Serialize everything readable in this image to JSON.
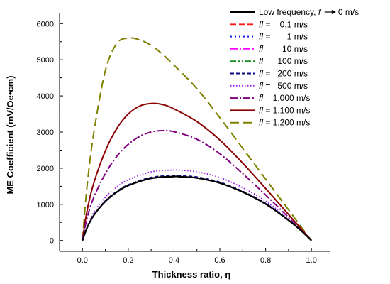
{
  "chart_data": {
    "type": "line",
    "title": "",
    "xlabel": "Thickness ratio, η",
    "ylabel": "ME Coefficient (mV/Oe•cm)",
    "xlim": [
      -0.1,
      1.08
    ],
    "ylim": [
      -300,
      6300
    ],
    "xticks": [
      0.0,
      0.2,
      0.4,
      0.6,
      0.8,
      1.0
    ],
    "xtick_labels": [
      "0.0",
      "0.2",
      "0.4",
      "0.6",
      "0.8",
      "1.0"
    ],
    "yticks": [
      0,
      1000,
      2000,
      3000,
      4000,
      5000,
      6000
    ],
    "ytick_labels": [
      "0",
      "1000",
      "2000",
      "3000",
      "4000",
      "5000",
      "6000"
    ],
    "grid": false,
    "legend_position": "top-right",
    "series": [
      {
        "name": "Low frequency, f → 0 m/s",
        "legend": {
          "main": "Low frequency, ",
          "italic": "f",
          "rest": "0 m/s",
          "arrow": true
        },
        "color": "#000000",
        "dash": "",
        "width": 2.2,
        "x": [
          0,
          0.02,
          0.05,
          0.1,
          0.15,
          0.2,
          0.3,
          0.4,
          0.42,
          0.5,
          0.6,
          0.7,
          0.8,
          0.9,
          0.95,
          1.0
        ],
        "y": [
          0,
          350,
          700,
          1080,
          1340,
          1520,
          1720,
          1770,
          1768,
          1730,
          1590,
          1340,
          1010,
          560,
          300,
          0
        ]
      },
      {
        "name": "fl = 0.1 m/s",
        "legend": {
          "italic": "fl",
          "rest": " =    0.1 m/s"
        },
        "color": "#ff1a1a",
        "dash": "8,4",
        "width": 1.8,
        "x": [
          0,
          0.02,
          0.05,
          0.1,
          0.15,
          0.2,
          0.3,
          0.4,
          0.42,
          0.5,
          0.6,
          0.7,
          0.8,
          0.9,
          0.95,
          1.0
        ],
        "y": [
          0,
          350,
          700,
          1080,
          1340,
          1520,
          1720,
          1770,
          1768,
          1730,
          1590,
          1340,
          1010,
          560,
          300,
          0
        ]
      },
      {
        "name": "fl = 1 m/s",
        "legend": {
          "italic": "fl",
          "rest": " =       1 m/s"
        },
        "color": "#1a1aff",
        "dash": "2,4",
        "width": 2,
        "x": [
          0,
          0.02,
          0.05,
          0.1,
          0.15,
          0.2,
          0.3,
          0.4,
          0.42,
          0.5,
          0.6,
          0.7,
          0.8,
          0.9,
          0.95,
          1.0
        ],
        "y": [
          0,
          350,
          700,
          1080,
          1340,
          1520,
          1720,
          1770,
          1768,
          1730,
          1590,
          1340,
          1010,
          560,
          300,
          0
        ]
      },
      {
        "name": "fl = 10 m/s",
        "legend": {
          "italic": "fl",
          "rest": " =     10 m/s"
        },
        "color": "#ff00ff",
        "dash": "10,3,2,3",
        "width": 1.8,
        "x": [
          0,
          0.02,
          0.05,
          0.1,
          0.15,
          0.2,
          0.3,
          0.4,
          0.42,
          0.5,
          0.6,
          0.7,
          0.8,
          0.9,
          0.95,
          1.0
        ],
        "y": [
          0,
          350,
          700,
          1080,
          1340,
          1520,
          1720,
          1770,
          1768,
          1730,
          1590,
          1340,
          1010,
          560,
          300,
          0
        ]
      },
      {
        "name": "fl = 100 m/s",
        "legend": {
          "italic": "fl",
          "rest": " =   100 m/s"
        },
        "color": "#1a8c1a",
        "dash": "8,3,2,3,2,3",
        "width": 1.8,
        "x": [
          0,
          0.02,
          0.05,
          0.1,
          0.15,
          0.2,
          0.3,
          0.4,
          0.42,
          0.5,
          0.6,
          0.7,
          0.8,
          0.9,
          0.95,
          1.0
        ],
        "y": [
          0,
          350,
          700,
          1080,
          1340,
          1520,
          1720,
          1770,
          1768,
          1730,
          1590,
          1340,
          1010,
          560,
          300,
          0
        ]
      },
      {
        "name": "fl = 200 m/s",
        "legend": {
          "italic": "fl",
          "rest": " =   200 m/s"
        },
        "color": "#0a0a80",
        "dash": "5,3",
        "width": 2,
        "x": [
          0,
          0.02,
          0.05,
          0.1,
          0.15,
          0.2,
          0.3,
          0.4,
          0.42,
          0.5,
          0.6,
          0.7,
          0.8,
          0.9,
          0.95,
          1.0
        ],
        "y": [
          0,
          355,
          710,
          1095,
          1355,
          1540,
          1745,
          1795,
          1793,
          1755,
          1612,
          1360,
          1025,
          570,
          305,
          0
        ]
      },
      {
        "name": "fl = 500 m/s",
        "legend": {
          "italic": "fl",
          "rest": " =   500 m/s"
        },
        "color": "#9a1ae6",
        "dash": "1.5,2.5",
        "width": 1.8,
        "x": [
          0,
          0.02,
          0.05,
          0.1,
          0.15,
          0.2,
          0.3,
          0.4,
          0.42,
          0.5,
          0.6,
          0.7,
          0.8,
          0.9,
          0.95,
          1.0
        ],
        "y": [
          0,
          390,
          780,
          1200,
          1480,
          1680,
          1900,
          1950,
          1948,
          1900,
          1740,
          1460,
          1090,
          590,
          310,
          0
        ]
      },
      {
        "name": "fl = 1,000 m/s",
        "legend": {
          "italic": "fl",
          "rest": " = 1,000 m/s"
        },
        "color": "#800080",
        "dash": "10,3,2,3",
        "width": 2,
        "x": [
          0,
          0.02,
          0.05,
          0.1,
          0.15,
          0.2,
          0.25,
          0.3,
          0.35,
          0.4,
          0.5,
          0.6,
          0.7,
          0.8,
          0.9,
          0.95,
          1.0
        ],
        "y": [
          0,
          620,
          1200,
          1850,
          2330,
          2660,
          2880,
          3000,
          3040,
          3010,
          2800,
          2400,
          1850,
          1260,
          640,
          320,
          0
        ]
      },
      {
        "name": "fl = 1,100 m/s",
        "legend": {
          "italic": "fl",
          "rest": " = 1,100 m/s"
        },
        "color": "#8b0000",
        "dash": "",
        "width": 2,
        "x": [
          0,
          0.02,
          0.05,
          0.1,
          0.15,
          0.2,
          0.25,
          0.3,
          0.35,
          0.4,
          0.5,
          0.6,
          0.7,
          0.8,
          0.9,
          0.95,
          1.0
        ],
        "y": [
          0,
          820,
          1600,
          2480,
          3100,
          3500,
          3720,
          3790,
          3760,
          3640,
          3290,
          2780,
          2140,
          1440,
          720,
          360,
          0
        ]
      },
      {
        "name": "fl = 1,200 m/s",
        "legend": {
          "italic": "fl",
          "rest": " = 1,200 m/s"
        },
        "color": "#808000",
        "dash": "12,6",
        "width": 2,
        "x": [
          0,
          0.02,
          0.05,
          0.1,
          0.15,
          0.2,
          0.25,
          0.3,
          0.35,
          0.4,
          0.5,
          0.6,
          0.7,
          0.8,
          0.9,
          0.95,
          1.0
        ],
        "y": [
          0,
          1500,
          3000,
          4700,
          5450,
          5600,
          5550,
          5400,
          5150,
          4850,
          4200,
          3400,
          2550,
          1700,
          850,
          420,
          0
        ]
      }
    ]
  }
}
